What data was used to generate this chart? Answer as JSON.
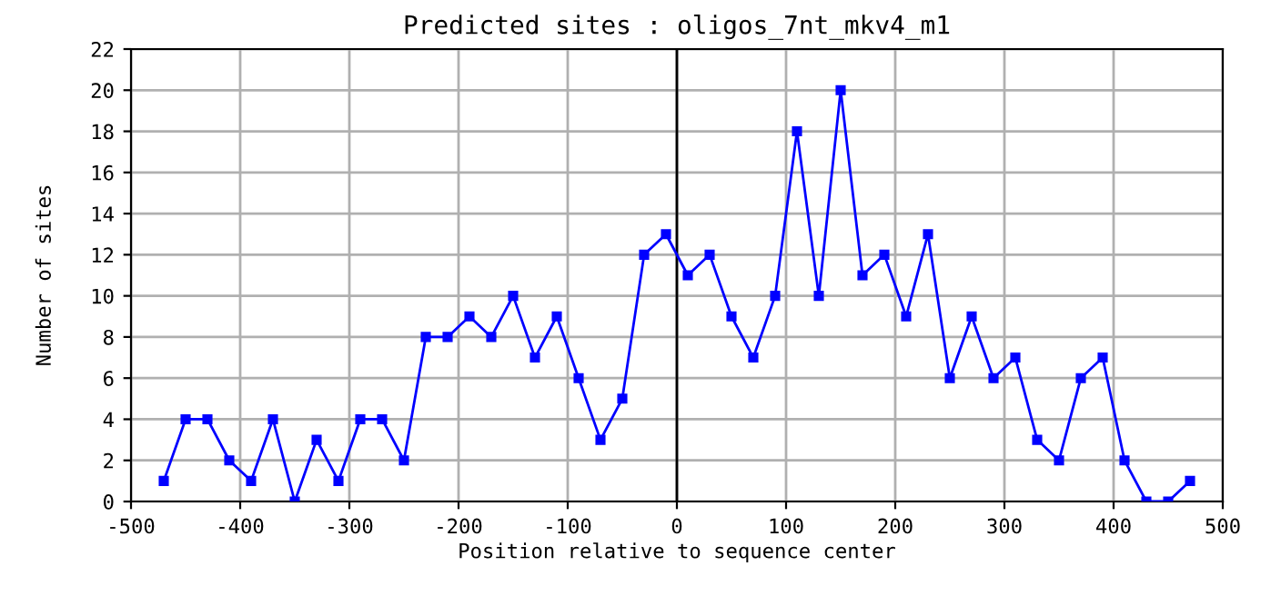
{
  "chart_data": {
    "type": "line",
    "title": "Predicted sites : oligos_7nt_mkv4_m1",
    "xlabel": "Position relative to sequence center",
    "ylabel": "Number of sites",
    "x": [
      -470,
      -450,
      -430,
      -410,
      -390,
      -370,
      -350,
      -330,
      -310,
      -290,
      -270,
      -250,
      -230,
      -210,
      -190,
      -170,
      -150,
      -130,
      -110,
      -90,
      -70,
      -50,
      -30,
      -10,
      10,
      30,
      50,
      70,
      90,
      110,
      130,
      150,
      170,
      190,
      210,
      230,
      250,
      270,
      290,
      310,
      330,
      350,
      370,
      390,
      410,
      430,
      450,
      470
    ],
    "series": [
      {
        "color": "#0000ff",
        "values": [
          1,
          4,
          4,
          2,
          1,
          4,
          0,
          3,
          1,
          4,
          4,
          2,
          8,
          8,
          9,
          8,
          10,
          7,
          9,
          6,
          3,
          5,
          12,
          13,
          11,
          12,
          9,
          7,
          10,
          18,
          10,
          20,
          11,
          12,
          9,
          13,
          6,
          9,
          6,
          7,
          3,
          2,
          6,
          7,
          2,
          0,
          0,
          1
        ]
      }
    ],
    "xlim": [
      -500,
      500
    ],
    "xticks": [
      -500,
      -400,
      -300,
      -200,
      -100,
      0,
      100,
      200,
      300,
      400,
      500
    ],
    "ylim": [
      0,
      22
    ],
    "yticks": [
      0,
      2,
      4,
      6,
      8,
      10,
      12,
      14,
      16,
      18,
      20,
      22
    ],
    "ref_lines": [
      {
        "axis": "x",
        "value": 0,
        "color": "#000000"
      }
    ],
    "grid": true,
    "marker": "square",
    "line_style": "solid",
    "legend": false
  }
}
